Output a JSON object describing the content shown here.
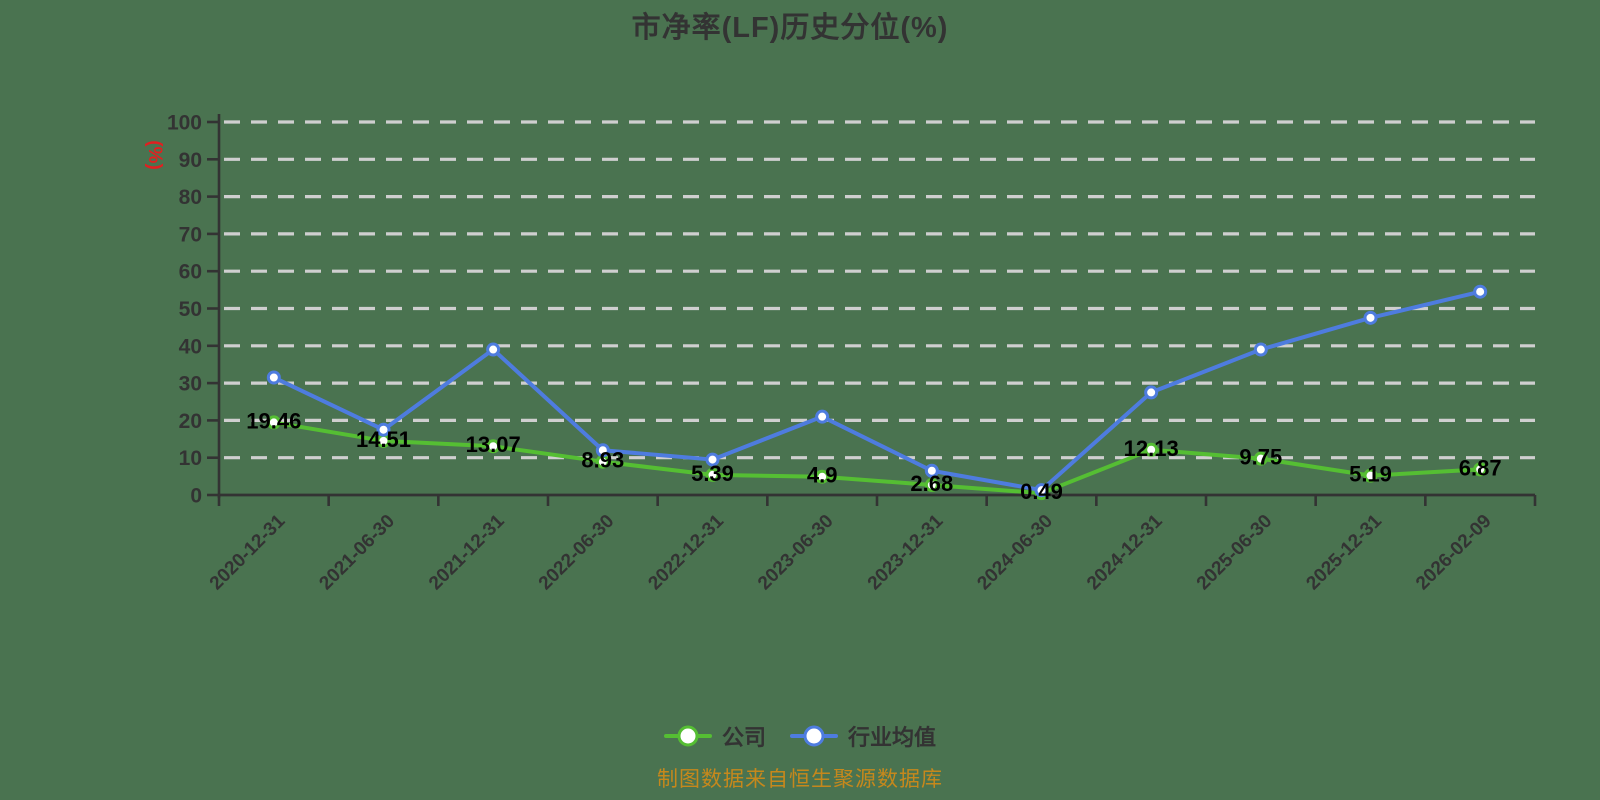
{
  "title": "市净率(LF)历史分位(%)",
  "footer": "制图数据来自恒生聚源数据库",
  "style": {
    "background": "#4A7350",
    "grid": "#CFCFCF",
    "axis": "#333333",
    "tick_text": "#333333",
    "value_label": "#000000",
    "title_text": "#333333",
    "unit_text": "#E02020",
    "footer_text": "#C6881C",
    "legend_text": "#333333",
    "point_fill": "#FFFFFF"
  },
  "chart_data": {
    "type": "line",
    "title": "市净率(LF)历史分位(%)",
    "xlabel": "",
    "ylabel": "(%)",
    "ylim": [
      0,
      100
    ],
    "ytick_interval": 10,
    "grid": "horizontal-dashed",
    "legend_position": "bottom-center",
    "categories": [
      "2020-12-31",
      "2021-06-30",
      "2021-12-31",
      "2022-06-30",
      "2022-12-31",
      "2023-06-30",
      "2023-12-31",
      "2024-06-30",
      "2024-12-31",
      "2025-06-30",
      "2025-12-31",
      "2026-02-09"
    ],
    "series": [
      {
        "name": "公司",
        "color": "#55BE33",
        "show_labels": true,
        "values": [
          19.46,
          14.51,
          13.07,
          8.93,
          5.39,
          4.9,
          2.68,
          0.49,
          12.13,
          9.75,
          5.19,
          6.87
        ]
      },
      {
        "name": "行业均值",
        "color": "#4E7CDF",
        "show_labels": false,
        "values": [
          31.5,
          17.5,
          39,
          12,
          9.5,
          21,
          6.5,
          1.3,
          27.5,
          39,
          47.5,
          54.5
        ]
      }
    ]
  }
}
